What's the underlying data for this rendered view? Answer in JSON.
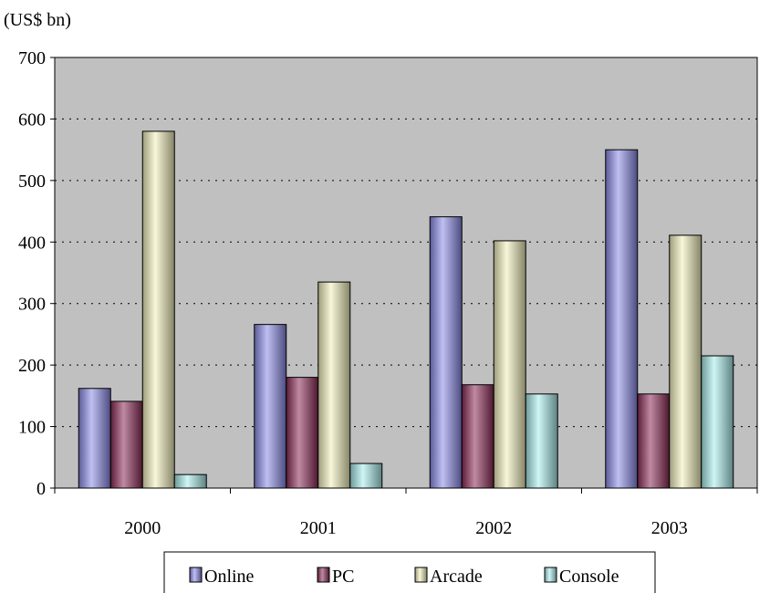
{
  "chart_data": {
    "type": "bar",
    "unit_label": "(US$ bn)",
    "categories": [
      "2000",
      "2001",
      "2002",
      "2003"
    ],
    "series": [
      {
        "name": "Online",
        "values": [
          162,
          266,
          441,
          550
        ],
        "color": "#8a8ae8"
      },
      {
        "name": "PC",
        "values": [
          141,
          180,
          168,
          153
        ],
        "color": "#8b2a56"
      },
      {
        "name": "Arcade",
        "values": [
          580,
          335,
          402,
          411
        ],
        "color": "#f2f0bc"
      },
      {
        "name": "Console",
        "values": [
          22,
          40,
          153,
          215
        ],
        "color": "#a8ecec"
      }
    ],
    "ylim": [
      0,
      700
    ],
    "yticks": [
      0,
      100,
      200,
      300,
      400,
      500,
      600,
      700
    ],
    "grid": true,
    "plot_background": "#c0c0c0",
    "legend_position": "bottom"
  }
}
